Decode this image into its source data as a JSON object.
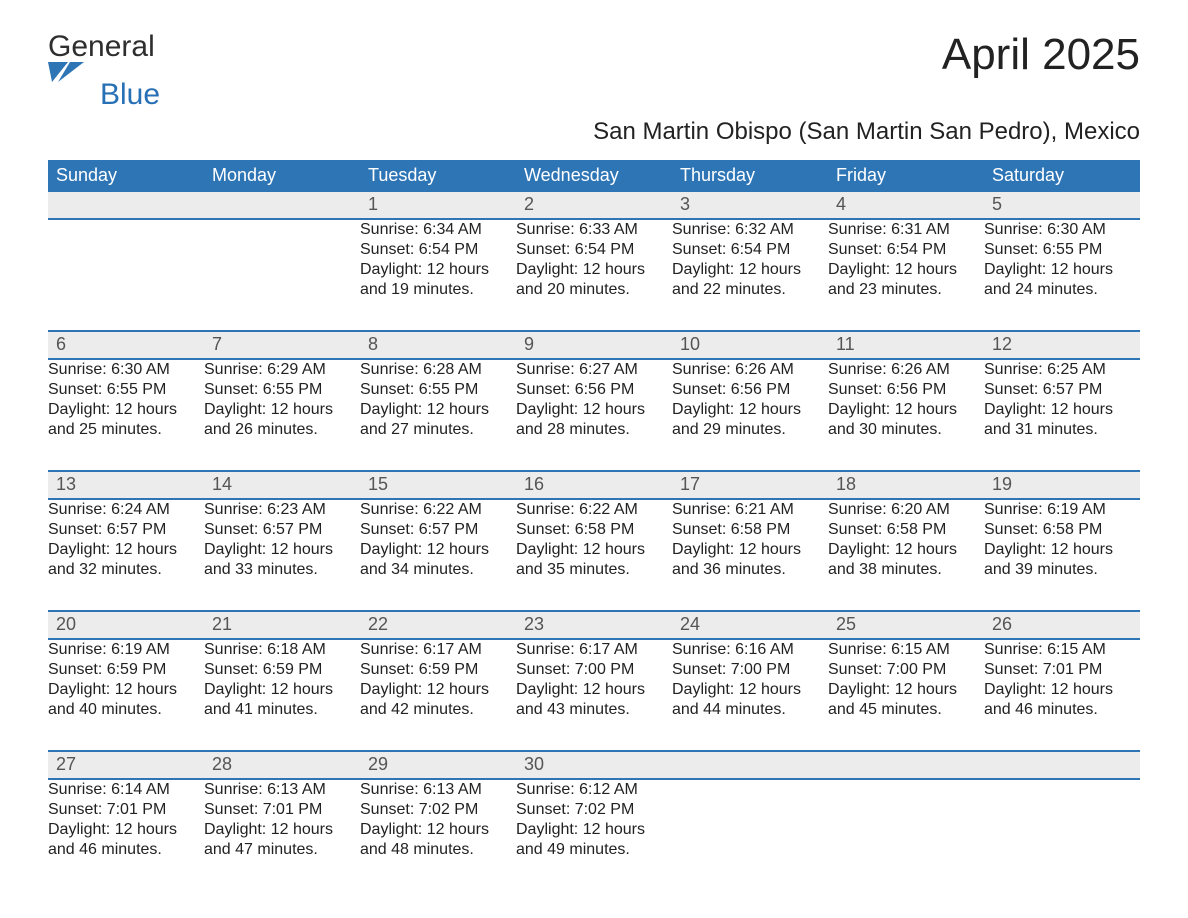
{
  "logo": {
    "word1": "General",
    "word2": "Blue",
    "mark_color": "#2e75b6"
  },
  "title": "April 2025",
  "subtitle": "San Martin Obispo (San Martin San Pedro), Mexico",
  "colors": {
    "header_bg": "#2e75b6",
    "header_text": "#ffffff",
    "daynum_bg": "#ececec",
    "rule": "#2e75b6",
    "text": "#222222",
    "page_bg": "#ffffff"
  },
  "typography": {
    "title_pt": 44,
    "subtitle_pt": 24,
    "header_pt": 18,
    "daynum_pt": 18,
    "body_pt": 16,
    "font_family": "Segoe UI"
  },
  "layout": {
    "columns": 7,
    "rows": 5,
    "first_weekday_blank_cells": 2
  },
  "columns": [
    "Sunday",
    "Monday",
    "Tuesday",
    "Wednesday",
    "Thursday",
    "Friday",
    "Saturday"
  ],
  "weeks": [
    [
      null,
      null,
      {
        "n": "1",
        "sunrise": "Sunrise: 6:34 AM",
        "sunset": "Sunset: 6:54 PM",
        "day1": "Daylight: 12 hours",
        "day2": "and 19 minutes."
      },
      {
        "n": "2",
        "sunrise": "Sunrise: 6:33 AM",
        "sunset": "Sunset: 6:54 PM",
        "day1": "Daylight: 12 hours",
        "day2": "and 20 minutes."
      },
      {
        "n": "3",
        "sunrise": "Sunrise: 6:32 AM",
        "sunset": "Sunset: 6:54 PM",
        "day1": "Daylight: 12 hours",
        "day2": "and 22 minutes."
      },
      {
        "n": "4",
        "sunrise": "Sunrise: 6:31 AM",
        "sunset": "Sunset: 6:54 PM",
        "day1": "Daylight: 12 hours",
        "day2": "and 23 minutes."
      },
      {
        "n": "5",
        "sunrise": "Sunrise: 6:30 AM",
        "sunset": "Sunset: 6:55 PM",
        "day1": "Daylight: 12 hours",
        "day2": "and 24 minutes."
      }
    ],
    [
      {
        "n": "6",
        "sunrise": "Sunrise: 6:30 AM",
        "sunset": "Sunset: 6:55 PM",
        "day1": "Daylight: 12 hours",
        "day2": "and 25 minutes."
      },
      {
        "n": "7",
        "sunrise": "Sunrise: 6:29 AM",
        "sunset": "Sunset: 6:55 PM",
        "day1": "Daylight: 12 hours",
        "day2": "and 26 minutes."
      },
      {
        "n": "8",
        "sunrise": "Sunrise: 6:28 AM",
        "sunset": "Sunset: 6:55 PM",
        "day1": "Daylight: 12 hours",
        "day2": "and 27 minutes."
      },
      {
        "n": "9",
        "sunrise": "Sunrise: 6:27 AM",
        "sunset": "Sunset: 6:56 PM",
        "day1": "Daylight: 12 hours",
        "day2": "and 28 minutes."
      },
      {
        "n": "10",
        "sunrise": "Sunrise: 6:26 AM",
        "sunset": "Sunset: 6:56 PM",
        "day1": "Daylight: 12 hours",
        "day2": "and 29 minutes."
      },
      {
        "n": "11",
        "sunrise": "Sunrise: 6:26 AM",
        "sunset": "Sunset: 6:56 PM",
        "day1": "Daylight: 12 hours",
        "day2": "and 30 minutes."
      },
      {
        "n": "12",
        "sunrise": "Sunrise: 6:25 AM",
        "sunset": "Sunset: 6:57 PM",
        "day1": "Daylight: 12 hours",
        "day2": "and 31 minutes."
      }
    ],
    [
      {
        "n": "13",
        "sunrise": "Sunrise: 6:24 AM",
        "sunset": "Sunset: 6:57 PM",
        "day1": "Daylight: 12 hours",
        "day2": "and 32 minutes."
      },
      {
        "n": "14",
        "sunrise": "Sunrise: 6:23 AM",
        "sunset": "Sunset: 6:57 PM",
        "day1": "Daylight: 12 hours",
        "day2": "and 33 minutes."
      },
      {
        "n": "15",
        "sunrise": "Sunrise: 6:22 AM",
        "sunset": "Sunset: 6:57 PM",
        "day1": "Daylight: 12 hours",
        "day2": "and 34 minutes."
      },
      {
        "n": "16",
        "sunrise": "Sunrise: 6:22 AM",
        "sunset": "Sunset: 6:58 PM",
        "day1": "Daylight: 12 hours",
        "day2": "and 35 minutes."
      },
      {
        "n": "17",
        "sunrise": "Sunrise: 6:21 AM",
        "sunset": "Sunset: 6:58 PM",
        "day1": "Daylight: 12 hours",
        "day2": "and 36 minutes."
      },
      {
        "n": "18",
        "sunrise": "Sunrise: 6:20 AM",
        "sunset": "Sunset: 6:58 PM",
        "day1": "Daylight: 12 hours",
        "day2": "and 38 minutes."
      },
      {
        "n": "19",
        "sunrise": "Sunrise: 6:19 AM",
        "sunset": "Sunset: 6:58 PM",
        "day1": "Daylight: 12 hours",
        "day2": "and 39 minutes."
      }
    ],
    [
      {
        "n": "20",
        "sunrise": "Sunrise: 6:19 AM",
        "sunset": "Sunset: 6:59 PM",
        "day1": "Daylight: 12 hours",
        "day2": "and 40 minutes."
      },
      {
        "n": "21",
        "sunrise": "Sunrise: 6:18 AM",
        "sunset": "Sunset: 6:59 PM",
        "day1": "Daylight: 12 hours",
        "day2": "and 41 minutes."
      },
      {
        "n": "22",
        "sunrise": "Sunrise: 6:17 AM",
        "sunset": "Sunset: 6:59 PM",
        "day1": "Daylight: 12 hours",
        "day2": "and 42 minutes."
      },
      {
        "n": "23",
        "sunrise": "Sunrise: 6:17 AM",
        "sunset": "Sunset: 7:00 PM",
        "day1": "Daylight: 12 hours",
        "day2": "and 43 minutes."
      },
      {
        "n": "24",
        "sunrise": "Sunrise: 6:16 AM",
        "sunset": "Sunset: 7:00 PM",
        "day1": "Daylight: 12 hours",
        "day2": "and 44 minutes."
      },
      {
        "n": "25",
        "sunrise": "Sunrise: 6:15 AM",
        "sunset": "Sunset: 7:00 PM",
        "day1": "Daylight: 12 hours",
        "day2": "and 45 minutes."
      },
      {
        "n": "26",
        "sunrise": "Sunrise: 6:15 AM",
        "sunset": "Sunset: 7:01 PM",
        "day1": "Daylight: 12 hours",
        "day2": "and 46 minutes."
      }
    ],
    [
      {
        "n": "27",
        "sunrise": "Sunrise: 6:14 AM",
        "sunset": "Sunset: 7:01 PM",
        "day1": "Daylight: 12 hours",
        "day2": "and 46 minutes."
      },
      {
        "n": "28",
        "sunrise": "Sunrise: 6:13 AM",
        "sunset": "Sunset: 7:01 PM",
        "day1": "Daylight: 12 hours",
        "day2": "and 47 minutes."
      },
      {
        "n": "29",
        "sunrise": "Sunrise: 6:13 AM",
        "sunset": "Sunset: 7:02 PM",
        "day1": "Daylight: 12 hours",
        "day2": "and 48 minutes."
      },
      {
        "n": "30",
        "sunrise": "Sunrise: 6:12 AM",
        "sunset": "Sunset: 7:02 PM",
        "day1": "Daylight: 12 hours",
        "day2": "and 49 minutes."
      },
      null,
      null,
      null
    ]
  ]
}
